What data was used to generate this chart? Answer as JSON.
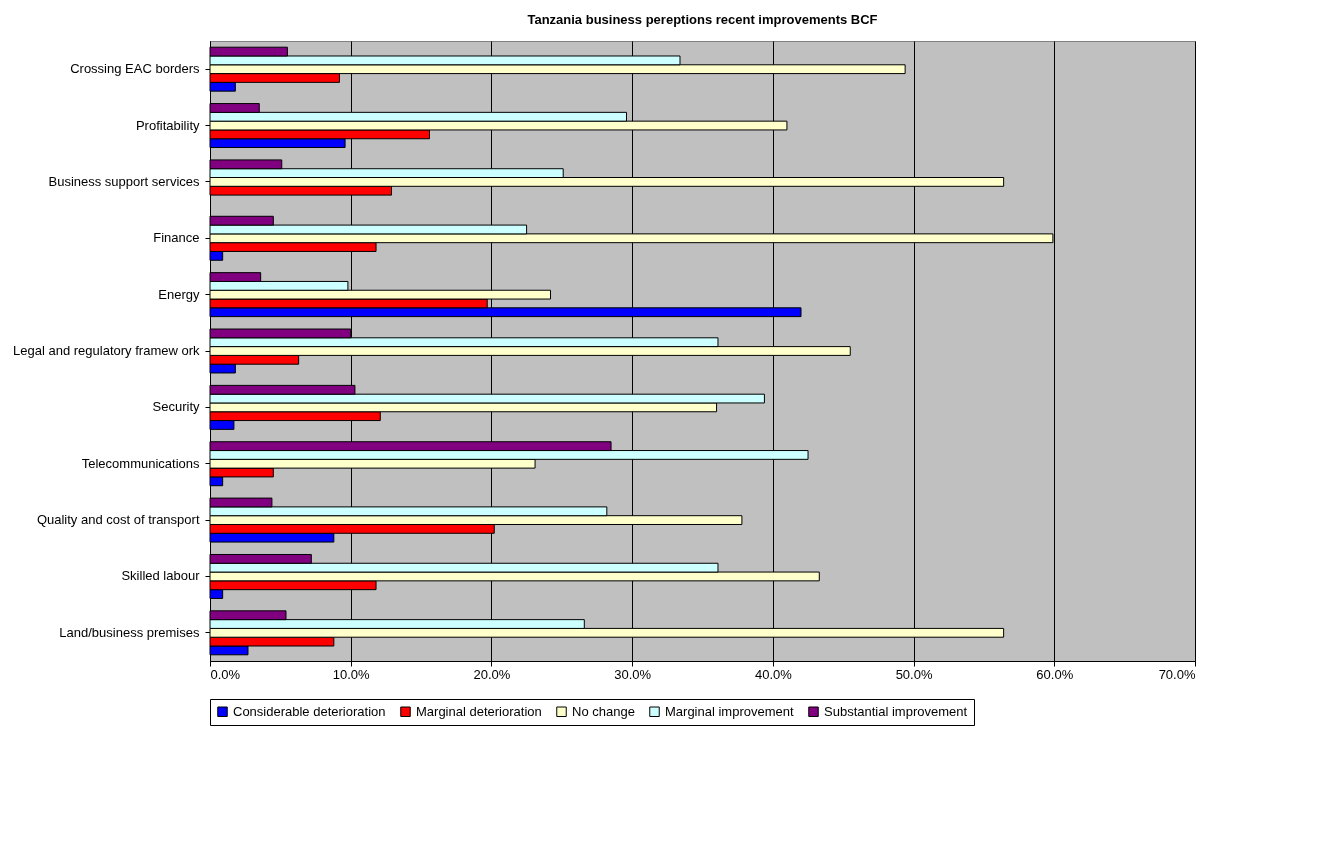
{
  "chart_data": {
    "type": "bar",
    "orientation": "horizontal",
    "title": "Tanzania business pereptions recent improvements BCF",
    "categories": [
      "Crossing EAC borders",
      "Profitability",
      "Business support services",
      "Finance",
      "Energy",
      "Legal and regulatory framew ork",
      "Security",
      "Telecommunications",
      "Quality and cost of transport",
      "Skilled labour",
      "Land/business premises"
    ],
    "series": [
      {
        "name": "Considerable deterioration",
        "color": "#0000ff",
        "values": [
          1.8,
          9.6,
          0,
          0.9,
          42.0,
          1.8,
          1.7,
          0.9,
          8.8,
          0.9,
          2.7
        ]
      },
      {
        "name": "Marginal deterioration",
        "color": "#ff0000",
        "values": [
          9.2,
          15.6,
          12.9,
          11.8,
          19.7,
          6.3,
          12.1,
          4.5,
          20.2,
          11.8,
          8.8
        ]
      },
      {
        "name": "No change",
        "color": "#ffffcc",
        "values": [
          49.4,
          41.0,
          56.4,
          59.9,
          24.2,
          45.5,
          36.0,
          23.1,
          37.8,
          43.3,
          56.4
        ]
      },
      {
        "name": "Marginal improvement",
        "color": "#ccffff",
        "values": [
          33.4,
          29.6,
          25.1,
          22.5,
          9.8,
          36.1,
          39.4,
          42.5,
          28.2,
          36.1,
          26.6
        ]
      },
      {
        "name": "Substantial improvement",
        "color": "#800080",
        "values": [
          5.5,
          3.5,
          5.1,
          4.5,
          3.6,
          10.0,
          10.3,
          28.5,
          4.4,
          7.2,
          5.4
        ]
      }
    ],
    "xlim": [
      0,
      70
    ],
    "xticks": [
      {
        "value": 0,
        "label": "0.0%"
      },
      {
        "value": 10,
        "label": "10.0%"
      },
      {
        "value": 20,
        "label": "20.0%"
      },
      {
        "value": 30,
        "label": "30.0%"
      },
      {
        "value": 40,
        "label": "40.0%"
      },
      {
        "value": 50,
        "label": "50.0%"
      },
      {
        "value": 60,
        "label": "60.0%"
      },
      {
        "value": 70,
        "label": "70.0%"
      }
    ],
    "grid": "x",
    "legend": "bottom"
  }
}
